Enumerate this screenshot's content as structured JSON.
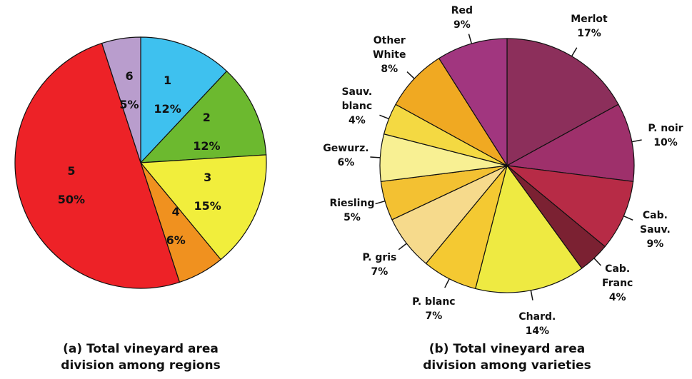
{
  "chart_data": [
    {
      "type": "pie",
      "label_position": "inside",
      "caption": "(a) Total vineyard area division among regions",
      "categories": [
        "1",
        "2",
        "3",
        "4",
        "5",
        "6"
      ],
      "values": [
        12,
        12,
        15,
        6,
        50,
        5
      ],
      "value_labels": [
        "12%",
        "12%",
        "15%",
        "6%",
        "50%",
        "5%"
      ],
      "colors": [
        "#3ec1ef",
        "#6cb92f",
        "#f1ee3c",
        "#f0911f",
        "#ed2227",
        "#b99dcd"
      ]
    },
    {
      "type": "pie",
      "label_position": "outside",
      "caption": "(b) Total vineyard area division among varieties",
      "categories": [
        "Merlot",
        "P. noir",
        "Cab. Sauv.",
        "Cab. Franc",
        "Chard.",
        "P. blanc",
        "P. gris",
        "Riesling",
        "Gewurz.",
        "Sauv. blanc",
        "Other White",
        "Other Red"
      ],
      "values": [
        17,
        10,
        9,
        4,
        14,
        7,
        7,
        5,
        6,
        4,
        8,
        9
      ],
      "value_labels": [
        "17%",
        "10%",
        "9%",
        "4%",
        "14%",
        "7%",
        "7%",
        "5%",
        "6%",
        "4%",
        "8%",
        "9%"
      ],
      "colors": [
        "#8c2f5b",
        "#9e306b",
        "#b72b46",
        "#7b2132",
        "#eeea42",
        "#f4c932",
        "#f6da8c",
        "#f3c132",
        "#f8f093",
        "#f4d942",
        "#f0a922",
        "#a1367f"
      ]
    }
  ]
}
